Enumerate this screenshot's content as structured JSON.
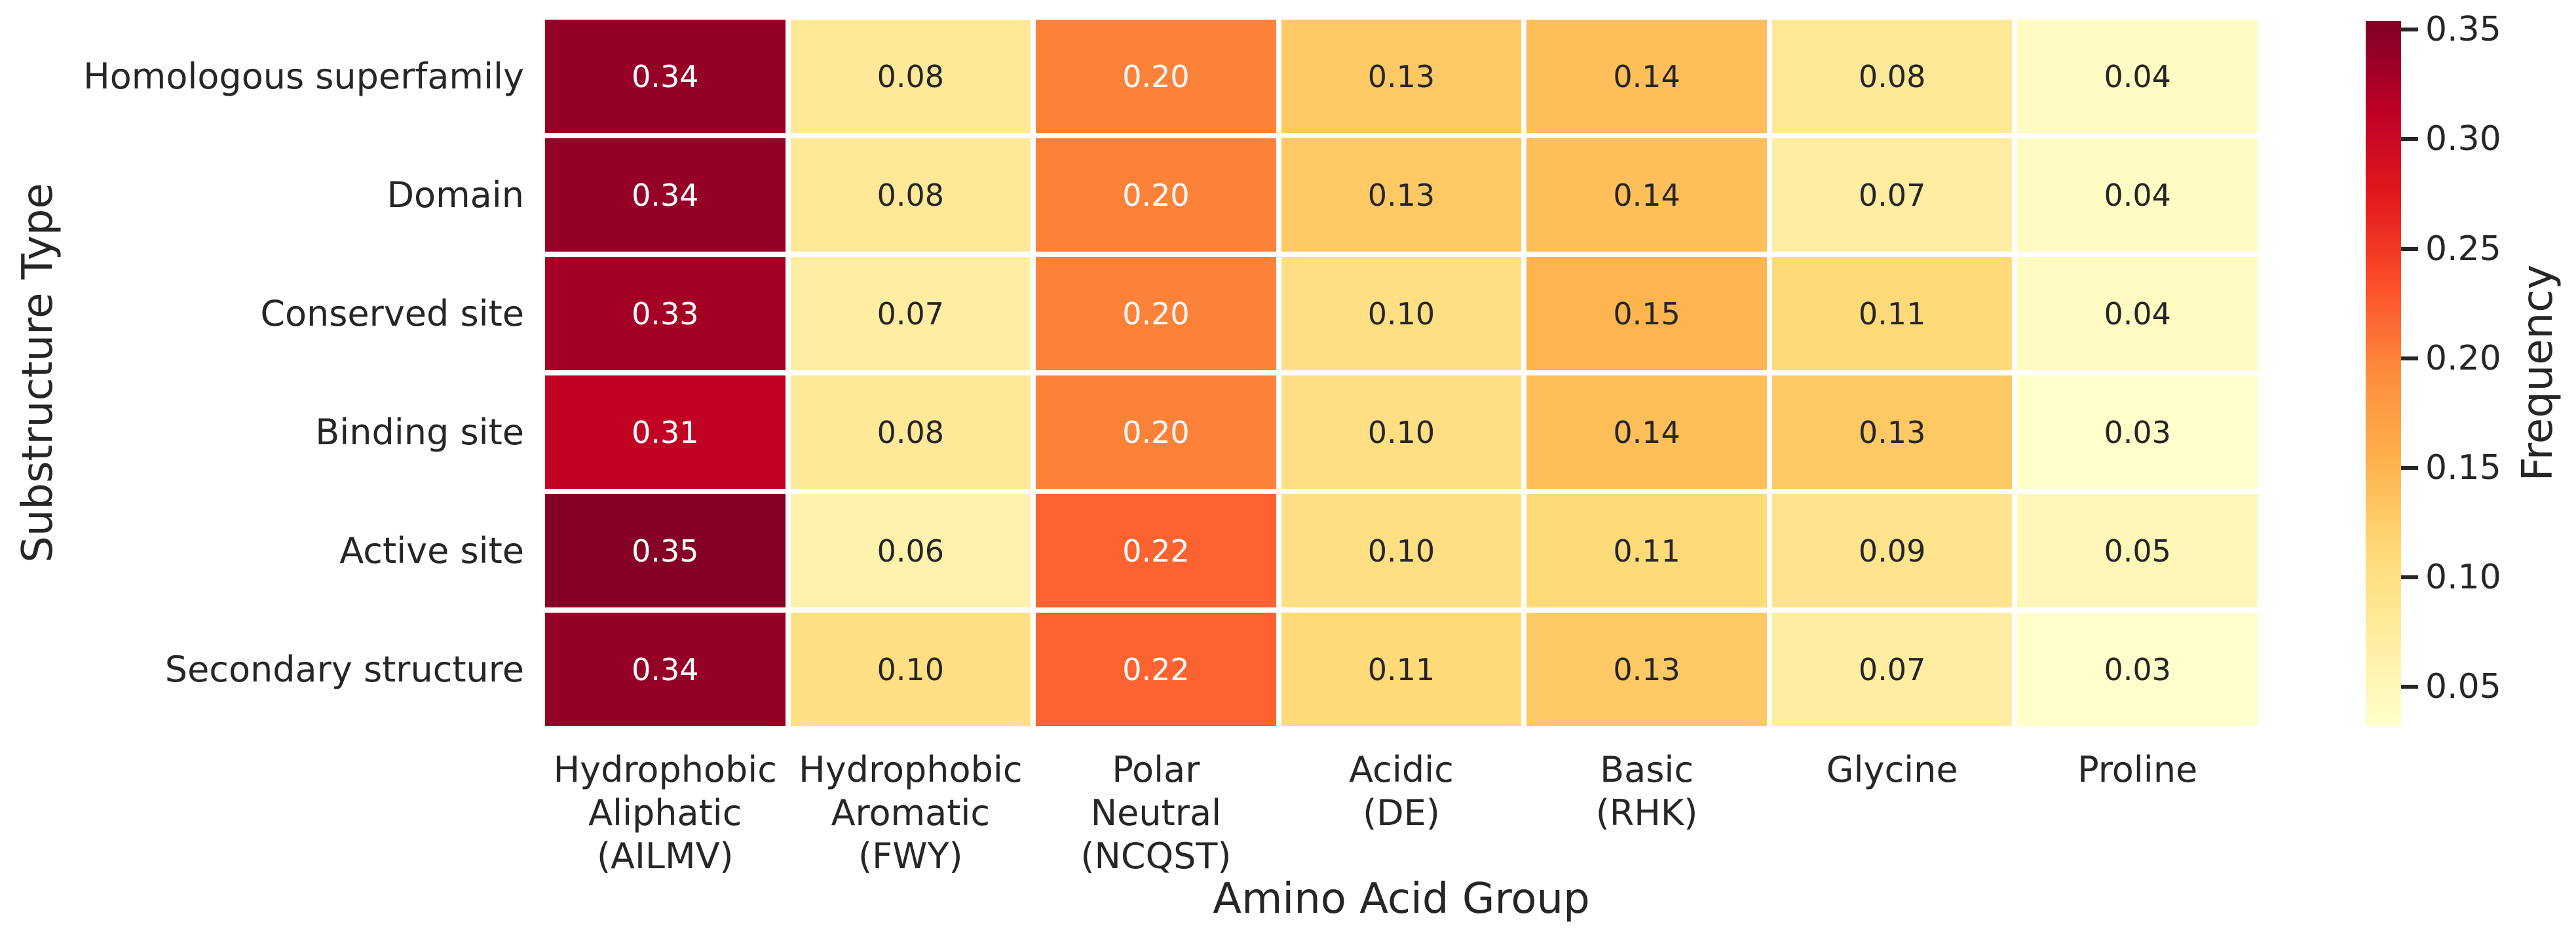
{
  "figure": {
    "background_color": "#ffffff",
    "text_color": "#262626",
    "annotation_light_text_color": "#ffffff"
  },
  "chart_data": {
    "type": "heatmap",
    "title": "",
    "xlabel": "Amino Acid Group",
    "ylabel": "Substructure Type",
    "colorbar_label": "Frequency",
    "y_categories": [
      "Homologous superfamily",
      "Domain",
      "Conserved site",
      "Binding site",
      "Active site",
      "Secondary structure"
    ],
    "x_categories": [
      {
        "name": "Hydrophobic Aliphatic (AILMV)",
        "lines": [
          "Hydrophobic",
          "Aliphatic",
          "(AILMV)"
        ]
      },
      {
        "name": "Hydrophobic Aromatic (FWY)",
        "lines": [
          "Hydrophobic",
          "Aromatic",
          "(FWY)"
        ]
      },
      {
        "name": "Polar Neutral (NCQST)",
        "lines": [
          "Polar",
          "Neutral",
          "(NCQST)"
        ]
      },
      {
        "name": "Acidic (DE)",
        "lines": [
          "Acidic",
          "(DE)"
        ]
      },
      {
        "name": "Basic (RHK)",
        "lines": [
          "Basic",
          "(RHK)"
        ]
      },
      {
        "name": "Glycine",
        "lines": [
          "Glycine"
        ]
      },
      {
        "name": "Proline",
        "lines": [
          "Proline"
        ]
      }
    ],
    "values": [
      [
        0.34,
        0.08,
        0.2,
        0.13,
        0.14,
        0.08,
        0.04
      ],
      [
        0.34,
        0.08,
        0.2,
        0.13,
        0.14,
        0.07,
        0.04
      ],
      [
        0.33,
        0.07,
        0.2,
        0.1,
        0.15,
        0.11,
        0.04
      ],
      [
        0.31,
        0.08,
        0.2,
        0.1,
        0.14,
        0.13,
        0.03
      ],
      [
        0.35,
        0.06,
        0.22,
        0.1,
        0.11,
        0.09,
        0.05
      ],
      [
        0.34,
        0.1,
        0.22,
        0.11,
        0.13,
        0.07,
        0.03
      ]
    ],
    "annotation_decimals": 2,
    "colormap": "YlOrRd",
    "colormap_stops": [
      "#ffffcc",
      "#ffeda0",
      "#fed976",
      "#feb24c",
      "#fd8d3c",
      "#fc4e2a",
      "#e31a1c",
      "#bd0026",
      "#800026"
    ],
    "vmin": 0.032,
    "vmax": 0.354,
    "colorbar_ticks": [
      0.35,
      0.3,
      0.25,
      0.2,
      0.15,
      0.1,
      0.05
    ],
    "grid": false,
    "legend_position": "right-colorbar"
  }
}
